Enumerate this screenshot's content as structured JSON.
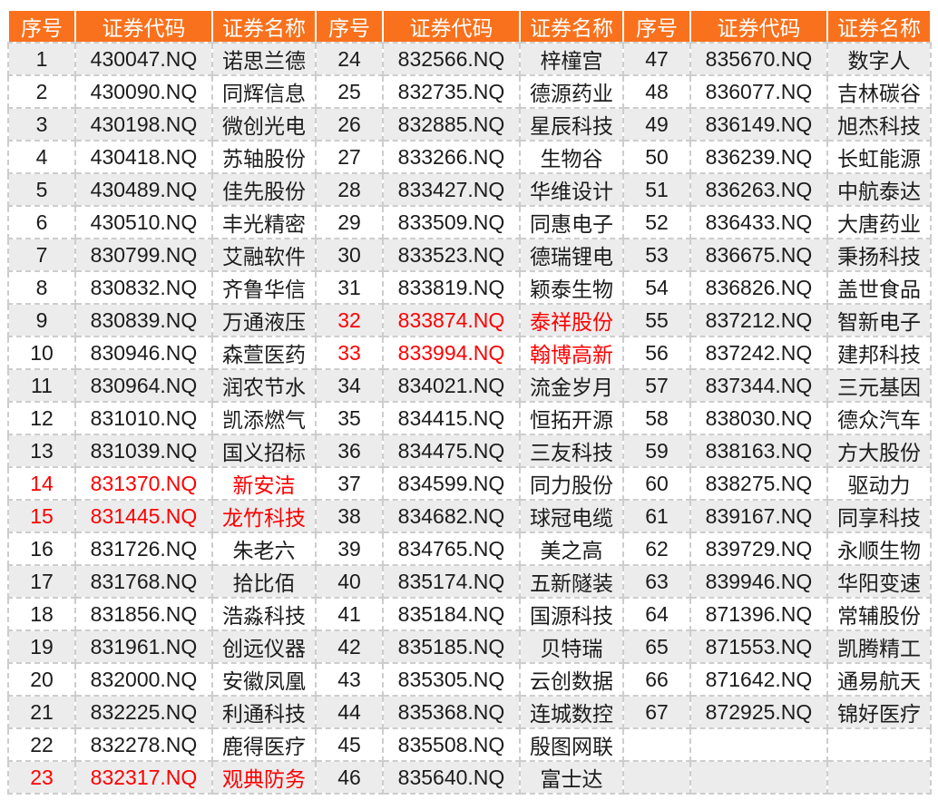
{
  "colors": {
    "header_bg": "#f9711c",
    "header_text": "#ffffff",
    "text": "#1c1c1c",
    "red_text": "#fe0000",
    "stripe": "#ececec",
    "border": "#cdcdcd"
  },
  "table": {
    "header": {
      "no": "序号",
      "code": "证券代码",
      "name": "证券名称"
    },
    "column_groups": 3,
    "rows_per_group": 23,
    "red_rows": [
      14,
      15,
      23,
      32,
      33
    ],
    "groups": [
      {
        "rows": [
          {
            "no": "1",
            "code": "430047.NQ",
            "name": "诺思兰德",
            "red": false
          },
          {
            "no": "2",
            "code": "430090.NQ",
            "name": "同辉信息",
            "red": false
          },
          {
            "no": "3",
            "code": "430198.NQ",
            "name": "微创光电",
            "red": false
          },
          {
            "no": "4",
            "code": "430418.NQ",
            "name": "苏轴股份",
            "red": false
          },
          {
            "no": "5",
            "code": "430489.NQ",
            "name": "佳先股份",
            "red": false
          },
          {
            "no": "6",
            "code": "430510.NQ",
            "name": "丰光精密",
            "red": false
          },
          {
            "no": "7",
            "code": "830799.NQ",
            "name": "艾融软件",
            "red": false
          },
          {
            "no": "8",
            "code": "830832.NQ",
            "name": "齐鲁华信",
            "red": false
          },
          {
            "no": "9",
            "code": "830839.NQ",
            "name": "万通液压",
            "red": false
          },
          {
            "no": "10",
            "code": "830946.NQ",
            "name": "森萱医药",
            "red": false
          },
          {
            "no": "11",
            "code": "830964.NQ",
            "name": "润农节水",
            "red": false
          },
          {
            "no": "12",
            "code": "831010.NQ",
            "name": "凯添燃气",
            "red": false
          },
          {
            "no": "13",
            "code": "831039.NQ",
            "name": "国义招标",
            "red": false
          },
          {
            "no": "14",
            "code": "831370.NQ",
            "name": "新安洁",
            "red": true
          },
          {
            "no": "15",
            "code": "831445.NQ",
            "name": "龙竹科技",
            "red": true
          },
          {
            "no": "16",
            "code": "831726.NQ",
            "name": "朱老六",
            "red": false
          },
          {
            "no": "17",
            "code": "831768.NQ",
            "name": "拾比佰",
            "red": false
          },
          {
            "no": "18",
            "code": "831856.NQ",
            "name": "浩淼科技",
            "red": false
          },
          {
            "no": "19",
            "code": "831961.NQ",
            "name": "创远仪器",
            "red": false
          },
          {
            "no": "20",
            "code": "832000.NQ",
            "name": "安徽凤凰",
            "red": false
          },
          {
            "no": "21",
            "code": "832225.NQ",
            "name": "利通科技",
            "red": false
          },
          {
            "no": "22",
            "code": "832278.NQ",
            "name": "鹿得医疗",
            "red": false
          },
          {
            "no": "23",
            "code": "832317.NQ",
            "name": "观典防务",
            "red": true
          }
        ]
      },
      {
        "rows": [
          {
            "no": "24",
            "code": "832566.NQ",
            "name": "梓橦宫",
            "red": false
          },
          {
            "no": "25",
            "code": "832735.NQ",
            "name": "德源药业",
            "red": false
          },
          {
            "no": "26",
            "code": "832885.NQ",
            "name": "星辰科技",
            "red": false
          },
          {
            "no": "27",
            "code": "833266.NQ",
            "name": "生物谷",
            "red": false
          },
          {
            "no": "28",
            "code": "833427.NQ",
            "name": "华维设计",
            "red": false
          },
          {
            "no": "29",
            "code": "833509.NQ",
            "name": "同惠电子",
            "red": false
          },
          {
            "no": "30",
            "code": "833523.NQ",
            "name": "德瑞锂电",
            "red": false
          },
          {
            "no": "31",
            "code": "833819.NQ",
            "name": "颖泰生物",
            "red": false
          },
          {
            "no": "32",
            "code": "833874.NQ",
            "name": "泰祥股份",
            "red": true
          },
          {
            "no": "33",
            "code": "833994.NQ",
            "name": "翰博高新",
            "red": true
          },
          {
            "no": "34",
            "code": "834021.NQ",
            "name": "流金岁月",
            "red": false
          },
          {
            "no": "35",
            "code": "834415.NQ",
            "name": "恒拓开源",
            "red": false
          },
          {
            "no": "36",
            "code": "834475.NQ",
            "name": "三友科技",
            "red": false
          },
          {
            "no": "37",
            "code": "834599.NQ",
            "name": "同力股份",
            "red": false
          },
          {
            "no": "38",
            "code": "834682.NQ",
            "name": "球冠电缆",
            "red": false
          },
          {
            "no": "39",
            "code": "834765.NQ",
            "name": "美之高",
            "red": false
          },
          {
            "no": "40",
            "code": "835174.NQ",
            "name": "五新隧装",
            "red": false
          },
          {
            "no": "41",
            "code": "835184.NQ",
            "name": "国源科技",
            "red": false
          },
          {
            "no": "42",
            "code": "835185.NQ",
            "name": "贝特瑞",
            "red": false
          },
          {
            "no": "43",
            "code": "835305.NQ",
            "name": "云创数据",
            "red": false
          },
          {
            "no": "44",
            "code": "835368.NQ",
            "name": "连城数控",
            "red": false
          },
          {
            "no": "45",
            "code": "835508.NQ",
            "name": "殷图网联",
            "red": false
          },
          {
            "no": "46",
            "code": "835640.NQ",
            "name": "富士达",
            "red": false
          }
        ]
      },
      {
        "rows": [
          {
            "no": "47",
            "code": "835670.NQ",
            "name": "数字人",
            "red": false
          },
          {
            "no": "48",
            "code": "836077.NQ",
            "name": "吉林碳谷",
            "red": false
          },
          {
            "no": "49",
            "code": "836149.NQ",
            "name": "旭杰科技",
            "red": false
          },
          {
            "no": "50",
            "code": "836239.NQ",
            "name": "长虹能源",
            "red": false
          },
          {
            "no": "51",
            "code": "836263.NQ",
            "name": "中航泰达",
            "red": false
          },
          {
            "no": "52",
            "code": "836433.NQ",
            "name": "大唐药业",
            "red": false
          },
          {
            "no": "53",
            "code": "836675.NQ",
            "name": "秉扬科技",
            "red": false
          },
          {
            "no": "54",
            "code": "836826.NQ",
            "name": "盖世食品",
            "red": false
          },
          {
            "no": "55",
            "code": "837212.NQ",
            "name": "智新电子",
            "red": false
          },
          {
            "no": "56",
            "code": "837242.NQ",
            "name": "建邦科技",
            "red": false
          },
          {
            "no": "57",
            "code": "837344.NQ",
            "name": "三元基因",
            "red": false
          },
          {
            "no": "58",
            "code": "838030.NQ",
            "name": "德众汽车",
            "red": false
          },
          {
            "no": "59",
            "code": "838163.NQ",
            "name": "方大股份",
            "red": false
          },
          {
            "no": "60",
            "code": "838275.NQ",
            "name": "驱动力",
            "red": false
          },
          {
            "no": "61",
            "code": "839167.NQ",
            "name": "同享科技",
            "red": false
          },
          {
            "no": "62",
            "code": "839729.NQ",
            "name": "永顺生物",
            "red": false
          },
          {
            "no": "63",
            "code": "839946.NQ",
            "name": "华阳变速",
            "red": false
          },
          {
            "no": "64",
            "code": "871396.NQ",
            "name": "常辅股份",
            "red": false
          },
          {
            "no": "65",
            "code": "871553.NQ",
            "name": "凯腾精工",
            "red": false
          },
          {
            "no": "66",
            "code": "871642.NQ",
            "name": "通易航天",
            "red": false
          },
          {
            "no": "67",
            "code": "872925.NQ",
            "name": "锦好医疗",
            "red": false
          }
        ]
      }
    ]
  }
}
